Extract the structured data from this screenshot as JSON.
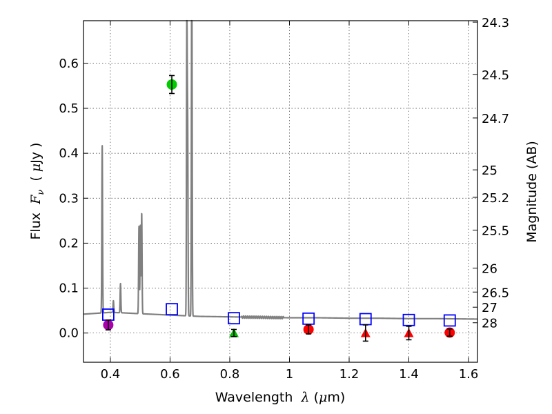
{
  "chart_data": {
    "type": "scatter",
    "title": "",
    "xlabel": "Wavelength  λ (μm)",
    "ylabel": "Flux  F_ν  ( μJy )",
    "y2label": "Magnitude (AB)",
    "xlim": [
      0.31,
      1.63
    ],
    "ylim": [
      -0.065,
      0.695
    ],
    "grid": true,
    "x_ticks": [
      0.4,
      0.6,
      0.8,
      1.0,
      1.2,
      1.4,
      1.6
    ],
    "x_tick_labels": [
      "0.4",
      "0.6",
      "0.8",
      "1",
      "1.2",
      "1.4",
      "1.6"
    ],
    "y_ticks": [
      0.0,
      0.1,
      0.2,
      0.3,
      0.4,
      0.5,
      0.6
    ],
    "y_tick_labels": [
      "0.0",
      "0.1",
      "0.2",
      "0.3",
      "0.4",
      "0.5",
      "0.6"
    ],
    "y2_ticks": [
      {
        "label": "24.3",
        "flux": 0.6918
      },
      {
        "label": "24.5",
        "flux": 0.5754
      },
      {
        "label": "24.7",
        "flux": 0.4786
      },
      {
        "label": "25",
        "flux": 0.3631
      },
      {
        "label": "25.2",
        "flux": 0.302
      },
      {
        "label": "25.5",
        "flux": 0.2291
      },
      {
        "label": "26",
        "flux": 0.1445
      },
      {
        "label": "26.5",
        "flux": 0.0912
      },
      {
        "label": "27",
        "flux": 0.0575
      },
      {
        "label": "28",
        "flux": 0.0229
      }
    ],
    "model_spectrum": {
      "name": "model SED",
      "color": "#808080",
      "continuum": [
        [
          0.31,
          0.042
        ],
        [
          0.4,
          0.046
        ],
        [
          0.44,
          0.045
        ],
        [
          0.5,
          0.043
        ],
        [
          0.6,
          0.04
        ],
        [
          0.7,
          0.037
        ],
        [
          0.8,
          0.036
        ],
        [
          0.9,
          0.035
        ],
        [
          1.0,
          0.034
        ],
        [
          1.1,
          0.034
        ],
        [
          1.2,
          0.033
        ],
        [
          1.3,
          0.033
        ],
        [
          1.4,
          0.032
        ],
        [
          1.5,
          0.032
        ],
        [
          1.63,
          0.031
        ]
      ],
      "emission_lines": [
        {
          "x": 0.3727,
          "peak": 0.418
        },
        {
          "x": 0.4102,
          "peak": 0.072
        },
        {
          "x": 0.434,
          "peak": 0.11
        },
        {
          "x": 0.4959,
          "peak": 0.238
        },
        {
          "x": 0.5007,
          "peak": 0.24
        },
        {
          "x": 0.505,
          "peak": 0.268
        },
        {
          "x": 0.6563,
          "peak": 0.7
        },
        {
          "x": 0.659,
          "peak": 0.444
        },
        {
          "x": 0.6725,
          "peak": 0.462
        },
        {
          "x": 0.6731,
          "peak": 0.45
        }
      ]
    },
    "model_photometry": {
      "name": "model flux in bands",
      "marker": "open square",
      "color": "#0000ff",
      "points": [
        [
          0.393,
          0.041
        ],
        [
          0.606,
          0.053
        ],
        [
          0.814,
          0.033
        ],
        [
          1.064,
          0.032
        ],
        [
          1.255,
          0.031
        ],
        [
          1.4,
          0.029
        ],
        [
          1.537,
          0.028
        ]
      ]
    },
    "observed_photometry": [
      {
        "x": 0.393,
        "y": 0.018,
        "err": 0.011,
        "marker": "circle",
        "color": "#aa00aa"
      },
      {
        "x": 0.606,
        "y": 0.553,
        "err": 0.02,
        "marker": "circle",
        "color": "#00cc00"
      },
      {
        "x": 0.814,
        "y": 0.0,
        "err": 0.008,
        "marker": "triangle",
        "color": "#00bb00"
      },
      {
        "x": 1.064,
        "y": 0.008,
        "err": 0.01,
        "marker": "circle",
        "color": "#ff0000"
      },
      {
        "x": 1.255,
        "y": 0.0,
        "err": 0.018,
        "marker": "triangle",
        "color": "#ff0000"
      },
      {
        "x": 1.4,
        "y": 0.0,
        "err": 0.015,
        "marker": "triangle",
        "color": "#ff0000"
      },
      {
        "x": 1.537,
        "y": 0.001,
        "err": 0.008,
        "marker": "circle",
        "color": "#ff0000"
      }
    ]
  }
}
